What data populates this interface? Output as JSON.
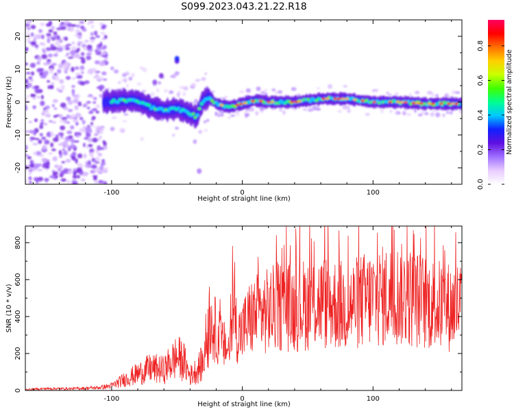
{
  "title": "S099.2023.043.21.22.R18",
  "spectrogram": {
    "type": "heatmap",
    "xlabel": "Height of straight line (km)",
    "ylabel": "Frequency (Hz)",
    "xlim": [
      -166,
      168
    ],
    "ylim": [
      -25,
      25
    ],
    "xticks": [
      -100,
      0,
      100
    ],
    "yticks": [
      -20,
      -10,
      0,
      10,
      20
    ],
    "colorbar": {
      "label": "Normalized spectral amplitude",
      "range": [
        0.0,
        0.95
      ],
      "ticks": [
        "0.0",
        "0.2",
        "0.4",
        "0.6",
        "0.8"
      ],
      "colors": [
        "#ffffff",
        "#e8ccff",
        "#a070ff",
        "#6010e0",
        "#1020ff",
        "#00c8ff",
        "#00ff90",
        "#40ff00",
        "#c8ff00",
        "#ffd000",
        "#ff7000",
        "#ff0000",
        "#ff0060"
      ]
    },
    "trace": [
      {
        "x": -105,
        "y": 0.0
      },
      {
        "x": -90,
        "y": 0.5
      },
      {
        "x": -80,
        "y": 0.3
      },
      {
        "x": -70,
        "y": -1.5
      },
      {
        "x": -60,
        "y": -2.5
      },
      {
        "x": -50,
        "y": -2.0
      },
      {
        "x": -40,
        "y": -3.5
      },
      {
        "x": -35,
        "y": -4.5
      },
      {
        "x": -30,
        "y": 0.5
      },
      {
        "x": -25,
        "y": 1.5
      },
      {
        "x": -20,
        "y": -0.5
      },
      {
        "x": -10,
        "y": -1.5
      },
      {
        "x": 0,
        "y": -0.5
      },
      {
        "x": 10,
        "y": 0.5
      },
      {
        "x": 20,
        "y": 0.0
      },
      {
        "x": 40,
        "y": 0.0
      },
      {
        "x": 60,
        "y": 1.0
      },
      {
        "x": 80,
        "y": 1.0
      },
      {
        "x": 100,
        "y": 0.0
      },
      {
        "x": 120,
        "y": 0.0
      },
      {
        "x": 140,
        "y": -0.5
      },
      {
        "x": 168,
        "y": -0.5
      }
    ]
  },
  "chart_data": {
    "type": "line",
    "title": "S099.2023.043.21.22.R18",
    "xlabel": "Height of straight line (km)",
    "ylabel": "SNR (10 * v/v)",
    "xlim": [
      -166,
      168
    ],
    "ylim": [
      0,
      890
    ],
    "xticks": [
      -100,
      0,
      100
    ],
    "yticks": [
      0,
      200,
      400,
      600,
      800
    ],
    "series": [
      {
        "name": "SNR",
        "color": "#ee2222",
        "x": [
          -166,
          -150,
          -130,
          -110,
          -100,
          -90,
          -80,
          -70,
          -60,
          -55,
          -50,
          -45,
          -40,
          -35,
          -30,
          -27,
          -25,
          -20,
          -15,
          -10,
          -7,
          -5,
          -3,
          0,
          5,
          10,
          20,
          30,
          40,
          50,
          60,
          70,
          80,
          90,
          100,
          110,
          120,
          130,
          140,
          150,
          160,
          168
        ],
        "values": [
          5,
          10,
          10,
          15,
          25,
          60,
          90,
          120,
          110,
          150,
          180,
          160,
          80,
          110,
          150,
          300,
          380,
          320,
          250,
          220,
          440,
          360,
          300,
          320,
          380,
          410,
          430,
          460,
          450,
          470,
          480,
          470,
          450,
          480,
          500,
          510,
          520,
          500,
          480,
          460,
          450,
          470
        ]
      }
    ]
  }
}
